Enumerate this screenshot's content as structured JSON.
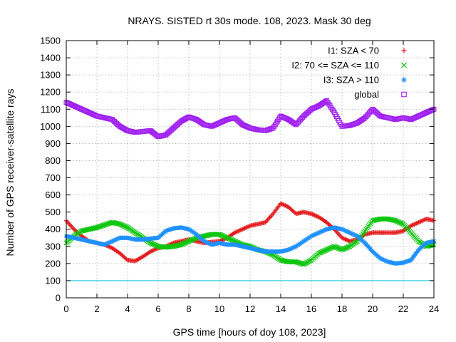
{
  "chart_data": {
    "type": "scatter",
    "title": "NRAYS. SISTED rt 30s mode. 108, 2023. Mask 30 deg",
    "xlabel": "GPS time [hours of doy 108, 2023]",
    "ylabel": "Number of GPS receiver-satellite rays",
    "xlim": [
      0,
      24
    ],
    "ylim": [
      0,
      1500
    ],
    "xticks": [
      0,
      2,
      4,
      6,
      8,
      10,
      12,
      14,
      16,
      18,
      20,
      22,
      24
    ],
    "yticks": [
      0,
      100,
      200,
      300,
      400,
      500,
      600,
      700,
      800,
      900,
      1000,
      1100,
      1200,
      1300,
      1400,
      1500
    ],
    "grid": true,
    "legend_position": "top-right",
    "threshold_line": {
      "y": 100,
      "color": "#00c8d8"
    },
    "series": [
      {
        "name": "I1: SZA < 70",
        "marker": "+",
        "color": "#e41a1c",
        "x": [
          0,
          0.5,
          1,
          1.5,
          2,
          2.5,
          3,
          3.5,
          4,
          4.5,
          5,
          5.5,
          6,
          6.5,
          7,
          7.5,
          8,
          8.5,
          9,
          9.5,
          10,
          10.5,
          11,
          11.5,
          12,
          12.5,
          13,
          13.5,
          14,
          14.5,
          15,
          15.5,
          16,
          16.5,
          17,
          17.5,
          18,
          18.5,
          19,
          19.5,
          20,
          20.5,
          21,
          21.5,
          22,
          22.5,
          23,
          23.5,
          24
        ],
        "y": [
          450,
          400,
          360,
          330,
          320,
          310,
          290,
          260,
          220,
          215,
          240,
          270,
          290,
          300,
          320,
          330,
          340,
          330,
          320,
          325,
          330,
          350,
          380,
          400,
          420,
          430,
          440,
          490,
          550,
          530,
          490,
          500,
          490,
          470,
          440,
          400,
          350,
          330,
          340,
          370,
          380,
          380,
          380,
          380,
          390,
          420,
          440,
          460,
          450
        ]
      },
      {
        "name": "I2: 70 <= SZA <= 110",
        "marker": "x",
        "color": "#0fc60f",
        "x": [
          0,
          0.5,
          1,
          1.5,
          2,
          2.5,
          3,
          3.5,
          4,
          4.5,
          5,
          5.5,
          6,
          6.5,
          7,
          7.5,
          8,
          8.5,
          9,
          9.5,
          10,
          10.5,
          11,
          11.5,
          12,
          12.5,
          13,
          13.5,
          14,
          14.5,
          15,
          15.5,
          16,
          16.5,
          17,
          17.5,
          18,
          18.5,
          19,
          19.5,
          20,
          20.5,
          21,
          21.5,
          22,
          22.5,
          23,
          23.5,
          24
        ],
        "y": [
          320,
          360,
          390,
          400,
          410,
          425,
          440,
          430,
          410,
          380,
          350,
          320,
          300,
          295,
          300,
          310,
          330,
          350,
          360,
          370,
          370,
          350,
          330,
          310,
          300,
          280,
          270,
          250,
          220,
          210,
          210,
          195,
          220,
          260,
          280,
          300,
          280,
          300,
          330,
          390,
          450,
          460,
          460,
          450,
          430,
          380,
          330,
          300,
          310
        ]
      },
      {
        "name": "I3: SZA > 110",
        "marker": "*",
        "color": "#1e90ff",
        "x": [
          0,
          0.5,
          1,
          1.5,
          2,
          2.5,
          3,
          3.5,
          4,
          4.5,
          5,
          5.5,
          6,
          6.5,
          7,
          7.5,
          8,
          8.5,
          9,
          9.5,
          10,
          10.5,
          11,
          11.5,
          12,
          12.5,
          13,
          13.5,
          14,
          14.5,
          15,
          15.5,
          16,
          16.5,
          17,
          17.5,
          18,
          18.5,
          19,
          19.5,
          20,
          20.5,
          21,
          21.5,
          22,
          22.5,
          23,
          23.5,
          24
        ],
        "y": [
          360,
          350,
          340,
          330,
          320,
          310,
          330,
          350,
          350,
          340,
          340,
          345,
          350,
          390,
          405,
          410,
          400,
          370,
          330,
          310,
          320,
          310,
          310,
          300,
          290,
          280,
          270,
          270,
          270,
          280,
          300,
          330,
          360,
          380,
          400,
          410,
          400,
          380,
          360,
          320,
          270,
          230,
          210,
          200,
          205,
          220,
          280,
          320,
          330
        ]
      },
      {
        "name": "global",
        "marker": "square",
        "color": "#a020f0",
        "x": [
          0,
          0.5,
          1,
          1.5,
          2,
          2.5,
          3,
          3.5,
          4,
          4.5,
          5,
          5.5,
          6,
          6.5,
          7,
          7.5,
          8,
          8.5,
          9,
          9.5,
          10,
          10.5,
          11,
          11.5,
          12,
          12.5,
          13,
          13.5,
          14,
          14.5,
          15,
          15.5,
          16,
          16.5,
          17,
          17.5,
          18,
          18.5,
          19,
          19.5,
          20,
          20.5,
          21,
          21.5,
          22,
          22.5,
          23,
          23.5,
          24
        ],
        "y": [
          1140,
          1120,
          1100,
          1080,
          1060,
          1050,
          1040,
          1000,
          975,
          965,
          970,
          975,
          940,
          950,
          990,
          1030,
          1055,
          1040,
          1010,
          1000,
          1020,
          1040,
          1050,
          1010,
          990,
          980,
          975,
          990,
          1060,
          1040,
          1010,
          1060,
          1100,
          1120,
          1150,
          1080,
          1000,
          1005,
          1020,
          1050,
          1100,
          1060,
          1050,
          1040,
          1050,
          1040,
          1060,
          1080,
          1100
        ]
      }
    ]
  }
}
